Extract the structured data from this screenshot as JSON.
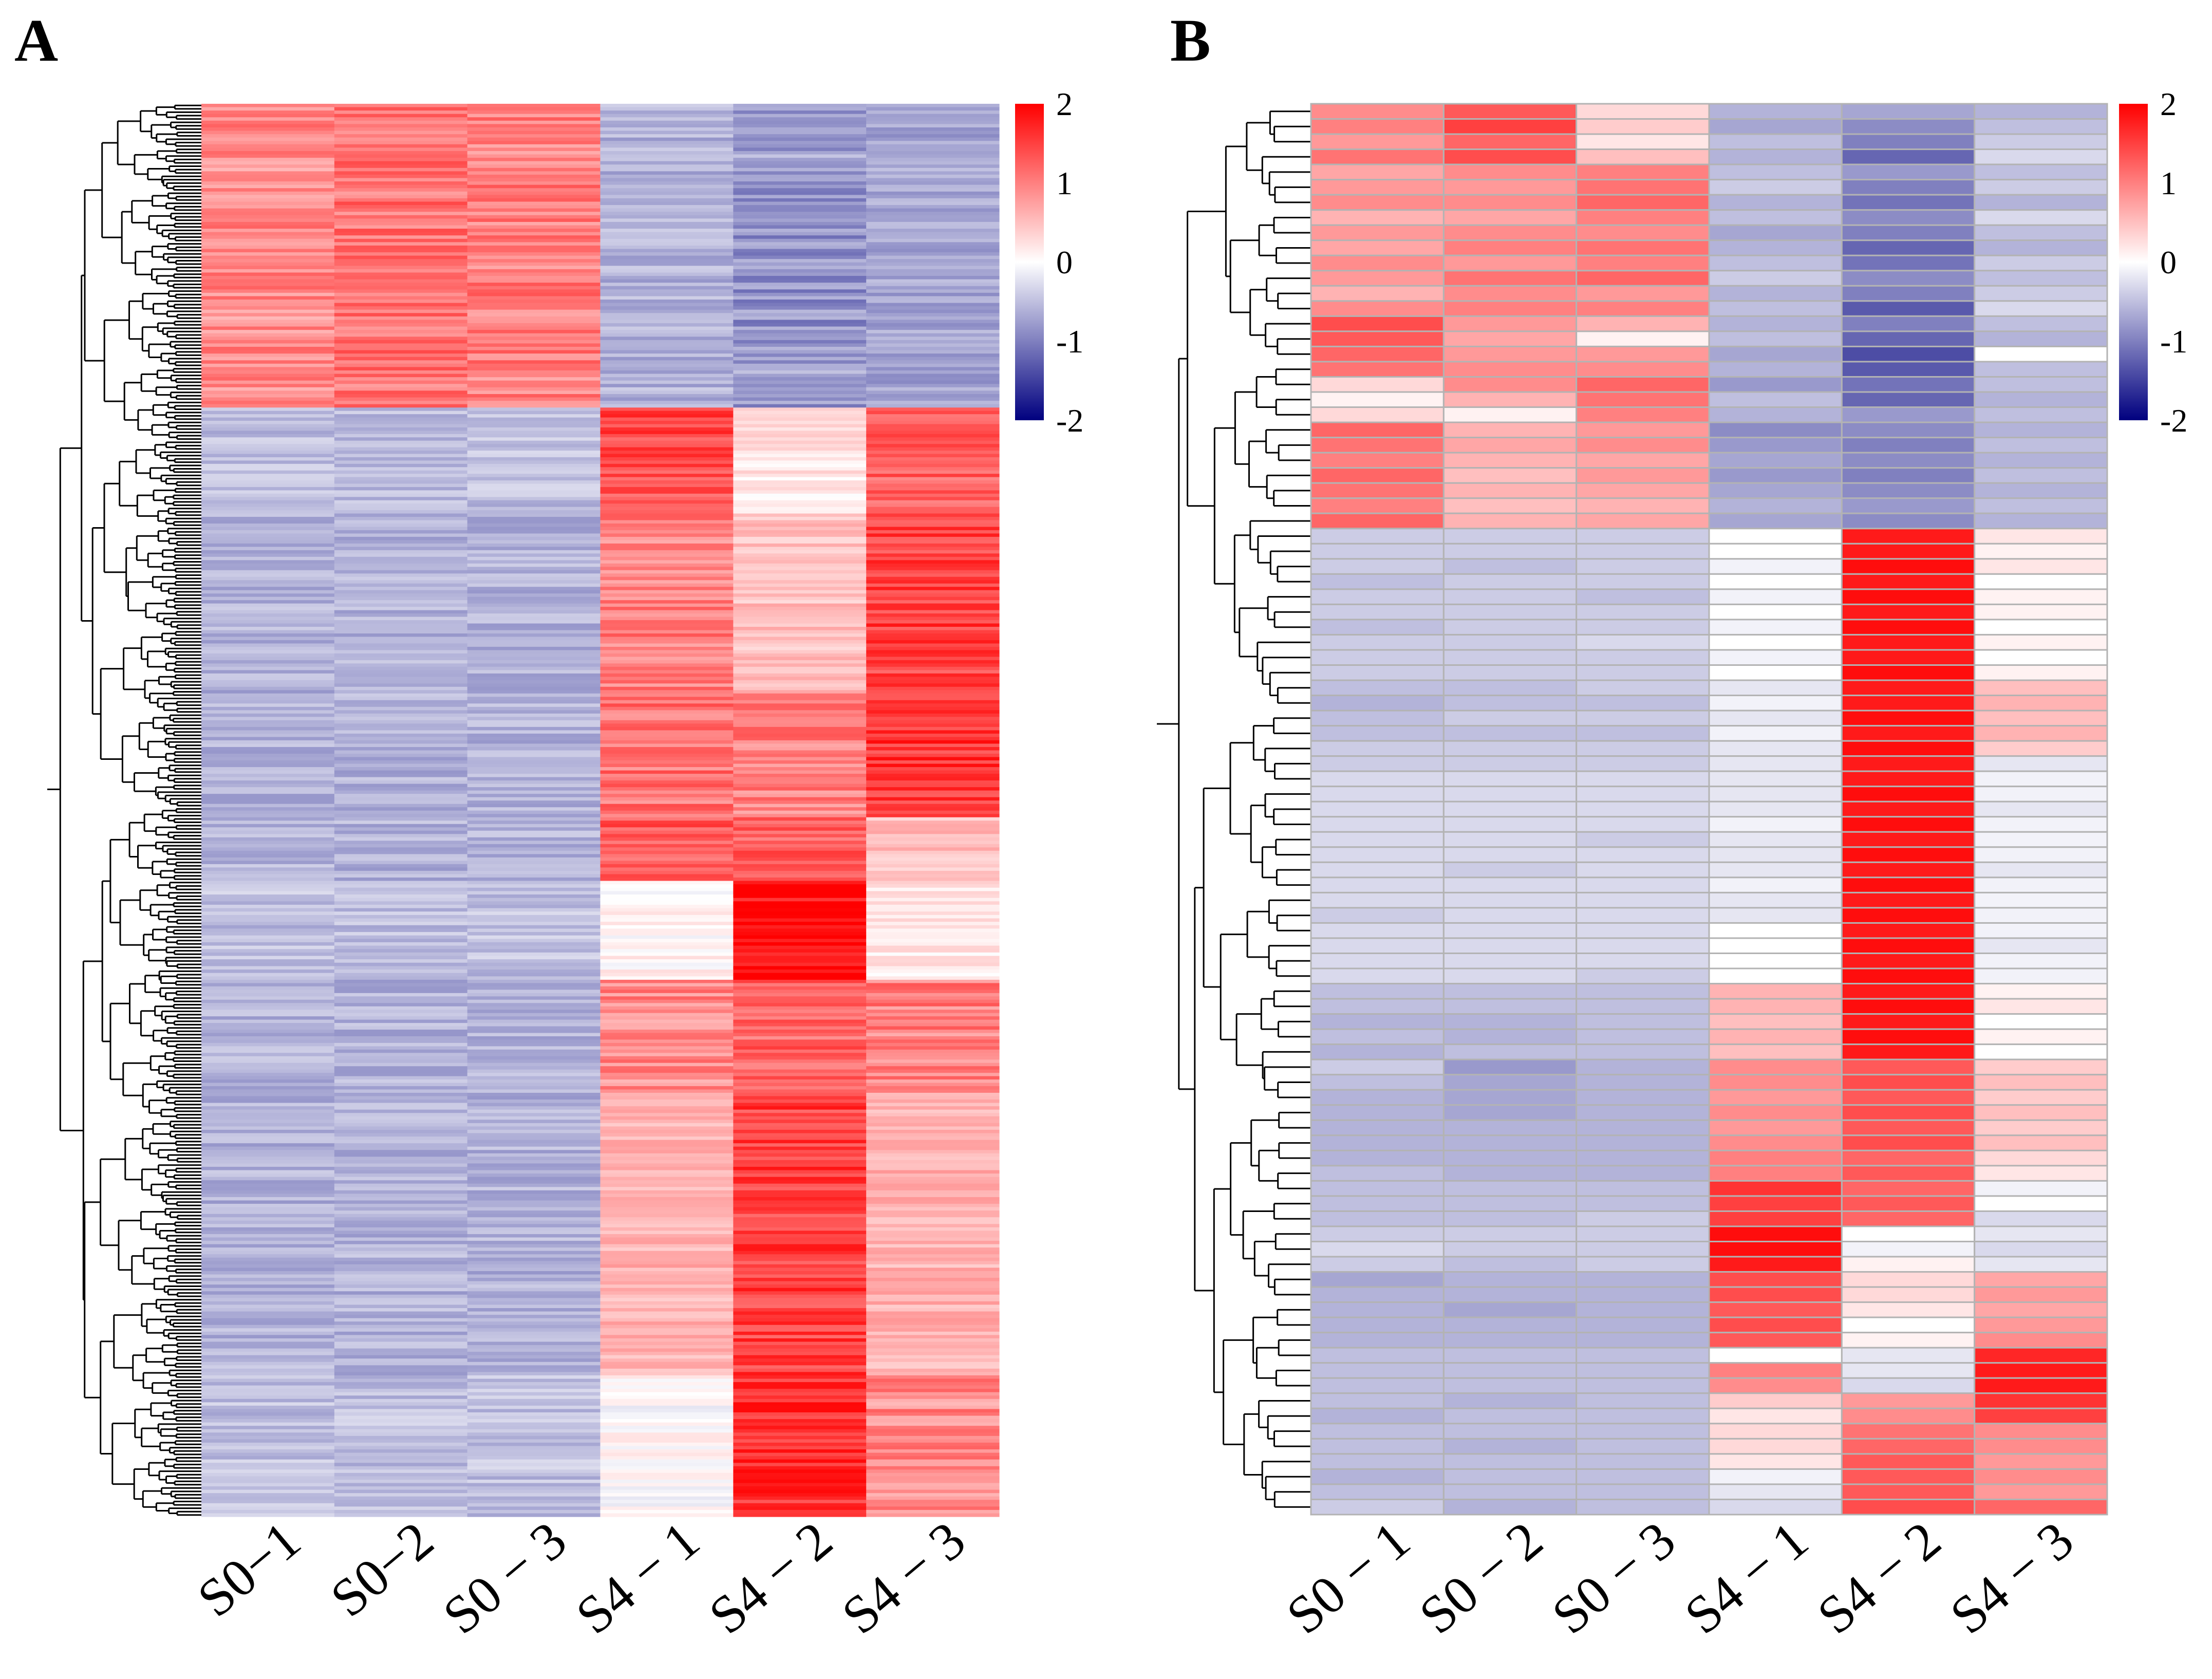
{
  "figure": {
    "panels": [
      "A",
      "B"
    ]
  },
  "colors": {
    "low": "#00007f",
    "mid": "#ffffff",
    "high": "#ff0000",
    "cell_divider_b": "#b3b3b3",
    "dendrogram": "#000000"
  },
  "chart_data": [
    {
      "type": "heatmap",
      "panel": "A",
      "title": "",
      "columns": [
        "S0−1",
        "S0−2",
        "S0 − 3",
        "S4 − 1",
        "S4 − 2",
        "S4 − 3"
      ],
      "color_scale": {
        "min": -2,
        "max": 2,
        "ticks": [
          "2",
          "1",
          "0",
          "-1",
          "-2"
        ]
      },
      "row_dendrogram": true,
      "approx_rows": 420,
      "row_blocks": [
        {
          "fraction": 0.215,
          "values": [
            0.9,
            1.1,
            1.0,
            -0.6,
            -0.8,
            -0.7
          ]
        },
        {
          "fraction": 0.075,
          "values": [
            -0.5,
            -0.5,
            -0.5,
            1.4,
            0.2,
            1.2
          ]
        },
        {
          "fraction": 0.125,
          "values": [
            -0.6,
            -0.6,
            -0.6,
            1.0,
            0.5,
            1.5
          ]
        },
        {
          "fraction": 0.09,
          "values": [
            -0.6,
            -0.6,
            -0.6,
            1.1,
            1.0,
            1.6
          ]
        },
        {
          "fraction": 0.045,
          "values": [
            -0.6,
            -0.6,
            -0.6,
            1.3,
            1.2,
            0.5
          ]
        },
        {
          "fraction": 0.07,
          "values": [
            -0.5,
            -0.5,
            -0.5,
            0.1,
            1.9,
            0.2
          ]
        },
        {
          "fraction": 0.08,
          "values": [
            -0.6,
            -0.6,
            -0.6,
            0.9,
            1.2,
            1.0
          ]
        },
        {
          "fraction": 0.2,
          "values": [
            -0.6,
            -0.6,
            -0.6,
            0.6,
            1.5,
            0.6
          ]
        },
        {
          "fraction": 0.1,
          "values": [
            -0.5,
            -0.5,
            -0.5,
            0.0,
            1.6,
            0.9
          ]
        }
      ]
    },
    {
      "type": "heatmap",
      "panel": "B",
      "title": "",
      "columns": [
        "S0 − 1",
        "S0 − 2",
        "S0 − 3",
        "S4 − 1",
        "S4 − 2",
        "S4 − 3"
      ],
      "color_scale": {
        "min": -2,
        "max": 2,
        "ticks": [
          "2",
          "1",
          "0",
          "-1",
          "-2"
        ]
      },
      "row_dendrogram": true,
      "rows": [
        [
          0.9,
          1.3,
          0.3,
          -0.6,
          -0.7,
          -0.6
        ],
        [
          1.0,
          1.5,
          0.4,
          -0.7,
          -0.9,
          -0.5
        ],
        [
          0.8,
          1.2,
          0.2,
          -0.5,
          -1.0,
          -0.4
        ],
        [
          1.1,
          1.4,
          0.5,
          -0.6,
          -1.2,
          -0.3
        ],
        [
          0.7,
          0.9,
          1.0,
          -0.5,
          -0.8,
          -0.5
        ],
        [
          0.8,
          0.8,
          1.1,
          -0.4,
          -1.0,
          -0.4
        ],
        [
          0.9,
          0.9,
          1.2,
          -0.6,
          -1.1,
          -0.6
        ],
        [
          0.6,
          0.7,
          1.0,
          -0.5,
          -0.9,
          -0.3
        ],
        [
          0.8,
          0.9,
          0.9,
          -0.7,
          -1.0,
          -0.5
        ],
        [
          0.7,
          1.0,
          1.1,
          -0.6,
          -1.2,
          -0.6
        ],
        [
          0.9,
          0.8,
          1.0,
          -0.5,
          -1.1,
          -0.4
        ],
        [
          0.8,
          1.1,
          1.2,
          -0.4,
          -0.9,
          -0.5
        ],
        [
          0.6,
          0.9,
          0.8,
          -0.6,
          -1.0,
          -0.4
        ],
        [
          0.9,
          1.0,
          1.0,
          -0.5,
          -1.3,
          -0.3
        ],
        [
          1.4,
          0.8,
          0.6,
          -0.6,
          -1.0,
          -0.5
        ],
        [
          1.3,
          0.7,
          0.1,
          -0.5,
          -1.2,
          -0.6
        ],
        [
          1.2,
          0.8,
          0.8,
          -0.7,
          -1.4,
          0.0
        ],
        [
          1.1,
          0.9,
          0.9,
          -0.6,
          -1.3,
          -0.5
        ],
        [
          0.3,
          0.9,
          1.2,
          -0.8,
          -1.1,
          -0.5
        ],
        [
          0.1,
          0.6,
          1.1,
          -0.5,
          -1.2,
          -0.6
        ],
        [
          0.3,
          0.1,
          1.0,
          -0.6,
          -0.8,
          -0.5
        ],
        [
          1.2,
          0.6,
          0.8,
          -0.9,
          -0.9,
          -0.6
        ],
        [
          1.1,
          0.7,
          0.9,
          -0.8,
          -1.0,
          -0.5
        ],
        [
          1.0,
          0.6,
          0.7,
          -0.7,
          -0.9,
          -0.6
        ],
        [
          1.2,
          0.5,
          0.8,
          -0.8,
          -1.0,
          -0.5
        ],
        [
          1.1,
          0.6,
          0.7,
          -0.7,
          -0.9,
          -0.6
        ],
        [
          1.0,
          0.5,
          0.6,
          -0.6,
          -0.8,
          -0.5
        ],
        [
          1.2,
          0.6,
          0.7,
          -0.7,
          -0.9,
          -0.6
        ],
        [
          -0.4,
          -0.4,
          -0.4,
          0.0,
          1.8,
          0.2
        ],
        [
          -0.4,
          -0.4,
          -0.4,
          0.0,
          1.8,
          0.1
        ],
        [
          -0.4,
          -0.5,
          -0.4,
          -0.1,
          1.9,
          0.2
        ],
        [
          -0.5,
          -0.4,
          -0.4,
          0.0,
          1.8,
          0.0
        ],
        [
          -0.4,
          -0.4,
          -0.5,
          -0.1,
          1.9,
          0.1
        ],
        [
          -0.4,
          -0.4,
          -0.4,
          0.0,
          1.8,
          0.1
        ],
        [
          -0.5,
          -0.4,
          -0.4,
          -0.1,
          1.9,
          0.0
        ],
        [
          -0.4,
          -0.4,
          -0.3,
          0.0,
          1.8,
          0.1
        ],
        [
          -0.4,
          -0.4,
          -0.4,
          -0.1,
          1.8,
          0.0
        ],
        [
          -0.4,
          -0.4,
          -0.4,
          0.0,
          1.9,
          0.1
        ],
        [
          -0.5,
          -0.5,
          -0.4,
          -0.2,
          1.8,
          0.5
        ],
        [
          -0.6,
          -0.5,
          -0.5,
          -0.1,
          1.8,
          0.6
        ],
        [
          -0.5,
          -0.4,
          -0.4,
          -0.2,
          1.9,
          0.5
        ],
        [
          -0.5,
          -0.5,
          -0.5,
          -0.1,
          1.8,
          0.6
        ],
        [
          -0.4,
          -0.4,
          -0.4,
          -0.2,
          1.9,
          0.4
        ],
        [
          -0.4,
          -0.4,
          -0.4,
          -0.2,
          1.8,
          -0.2
        ],
        [
          -0.3,
          -0.3,
          -0.3,
          -0.2,
          1.8,
          -0.1
        ],
        [
          -0.3,
          -0.3,
          -0.3,
          -0.2,
          1.9,
          -0.1
        ],
        [
          -0.3,
          -0.3,
          -0.3,
          -0.2,
          1.8,
          -0.2
        ],
        [
          -0.3,
          -0.3,
          -0.3,
          -0.1,
          1.9,
          -0.1
        ],
        [
          -0.3,
          -0.3,
          -0.4,
          -0.2,
          1.8,
          -0.1
        ],
        [
          -0.3,
          -0.3,
          -0.3,
          -0.2,
          1.9,
          -0.1
        ],
        [
          -0.3,
          -0.4,
          -0.3,
          -0.2,
          1.8,
          -0.2
        ],
        [
          -0.3,
          -0.3,
          -0.3,
          -0.1,
          1.9,
          -0.1
        ],
        [
          -0.3,
          -0.3,
          -0.3,
          -0.2,
          1.8,
          -0.1
        ],
        [
          -0.4,
          -0.3,
          -0.3,
          -0.2,
          1.9,
          -0.1
        ],
        [
          -0.3,
          -0.3,
          -0.3,
          0.0,
          1.8,
          -0.1
        ],
        [
          -0.3,
          -0.3,
          -0.3,
          0.0,
          1.9,
          -0.2
        ],
        [
          -0.3,
          -0.3,
          -0.3,
          0.0,
          1.8,
          -0.1
        ],
        [
          -0.3,
          -0.3,
          -0.4,
          0.0,
          1.9,
          -0.1
        ],
        [
          -0.5,
          -0.5,
          -0.5,
          0.6,
          1.8,
          0.1
        ],
        [
          -0.5,
          -0.5,
          -0.5,
          0.6,
          1.9,
          0.2
        ],
        [
          -0.6,
          -0.6,
          -0.5,
          0.5,
          1.8,
          0.0
        ],
        [
          -0.5,
          -0.6,
          -0.5,
          0.6,
          1.9,
          0.1
        ],
        [
          -0.6,
          -0.5,
          -0.5,
          0.5,
          1.8,
          0.0
        ],
        [
          -0.4,
          -0.8,
          -0.6,
          0.9,
          1.3,
          0.4
        ],
        [
          -0.5,
          -0.7,
          -0.6,
          0.9,
          1.4,
          0.5
        ],
        [
          -0.6,
          -0.7,
          -0.6,
          0.8,
          1.3,
          0.4
        ],
        [
          -0.6,
          -0.7,
          -0.6,
          0.9,
          1.4,
          0.5
        ],
        [
          -0.6,
          -0.6,
          -0.6,
          0.8,
          1.3,
          0.4
        ],
        [
          -0.6,
          -0.6,
          -0.6,
          0.9,
          1.4,
          0.5
        ],
        [
          -0.6,
          -0.6,
          -0.6,
          1.0,
          1.2,
          0.3
        ],
        [
          -0.5,
          -0.6,
          -0.6,
          1.0,
          1.3,
          0.2
        ],
        [
          -0.5,
          -0.5,
          -0.5,
          1.6,
          1.2,
          -0.1
        ],
        [
          -0.5,
          -0.5,
          -0.5,
          1.5,
          1.3,
          0.0
        ],
        [
          -0.5,
          -0.5,
          -0.4,
          1.5,
          1.2,
          -0.3
        ],
        [
          -0.4,
          -0.4,
          -0.4,
          1.9,
          0.0,
          -0.2
        ],
        [
          -0.3,
          -0.4,
          -0.4,
          1.9,
          -0.1,
          -0.3
        ],
        [
          -0.4,
          -0.5,
          -0.4,
          1.8,
          0.1,
          -0.2
        ],
        [
          -0.7,
          -0.6,
          -0.6,
          1.4,
          0.3,
          0.7
        ],
        [
          -0.6,
          -0.6,
          -0.6,
          1.4,
          0.3,
          0.8
        ],
        [
          -0.6,
          -0.7,
          -0.6,
          1.3,
          0.2,
          0.7
        ],
        [
          -0.6,
          -0.6,
          -0.6,
          1.4,
          0.0,
          0.8
        ],
        [
          -0.6,
          -0.6,
          -0.6,
          1.3,
          0.1,
          0.9
        ],
        [
          -0.5,
          -0.5,
          -0.5,
          0.0,
          -0.2,
          1.7
        ],
        [
          -0.5,
          -0.5,
          -0.5,
          1.0,
          -0.2,
          1.8
        ],
        [
          -0.5,
          -0.5,
          -0.5,
          0.9,
          -0.3,
          1.8
        ],
        [
          -0.5,
          -0.6,
          -0.5,
          0.4,
          0.8,
          1.6
        ],
        [
          -0.6,
          -0.5,
          -0.5,
          0.2,
          0.9,
          1.5
        ],
        [
          -0.5,
          -0.5,
          -0.5,
          0.3,
          1.1,
          0.9
        ],
        [
          -0.5,
          -0.6,
          -0.5,
          0.3,
          1.2,
          0.9
        ],
        [
          -0.5,
          -0.5,
          -0.5,
          0.2,
          1.3,
          0.8
        ],
        [
          -0.6,
          -0.5,
          -0.5,
          -0.1,
          1.3,
          0.9
        ],
        [
          -0.5,
          -0.5,
          -0.5,
          -0.2,
          1.3,
          0.8
        ],
        [
          -0.4,
          -0.6,
          -0.5,
          -0.3,
          1.4,
          1.2
        ]
      ]
    }
  ]
}
